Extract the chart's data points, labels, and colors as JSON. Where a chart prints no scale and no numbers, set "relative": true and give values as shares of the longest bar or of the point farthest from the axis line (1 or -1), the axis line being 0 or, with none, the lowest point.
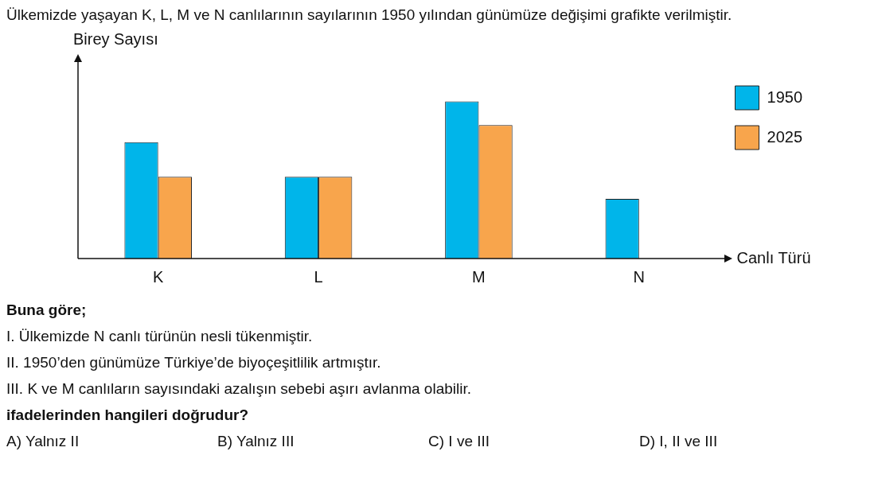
{
  "chart_data": {
    "type": "bar",
    "title": "Ülkemizde yaşayan K, L, M ve N canlılarının sayılarının 1950 yılından günümüze değişimi grafikte verilmiştir.",
    "xlabel": "Canlı Türü",
    "ylabel": "Birey Sayısı",
    "relative": true,
    "categories": [
      "K",
      "L",
      "M",
      "N"
    ],
    "series": [
      {
        "name": "1950",
        "color": "#00b5ea",
        "values": [
          0.74,
          0.52,
          1,
          0.38
        ]
      },
      {
        "name": "2025",
        "color": "#f8a54c",
        "values": [
          0.52,
          0.52,
          0.85,
          0
        ]
      }
    ],
    "legend": "right",
    "annotations": [
      "Buna göre;",
      "I.  Ülkemizde N canlı türünün nesli tükenmiştir.",
      "II.  1950’den günümüze Türkiye’de biyoçeşitlilik artmıştır.",
      "III. K ve M canlıların sayısındaki azalışın sebebi aşırı avlanma olabilir.",
      "ifadelerinden hangileri doğrudur?",
      "A) Yalnız II",
      "B) Yalnız III",
      "C) I ve III",
      "D) I, II ve III"
    ]
  }
}
